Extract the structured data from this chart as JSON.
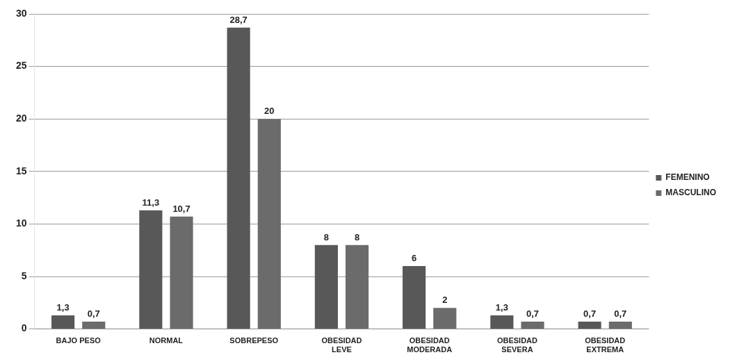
{
  "chart_data": {
    "type": "bar",
    "categories": [
      "BAJO PESO",
      "NORMAL",
      "SOBREPESO",
      "OBESIDAD\nLEVE",
      "OBESIDAD\nMODERADA",
      "OBESIDAD\nSEVERA",
      "OBESIDAD\nEXTREMA"
    ],
    "series": [
      {
        "name": "FEMENINO",
        "color": "#585858",
        "values": [
          1.3,
          11.3,
          28.7,
          8,
          6,
          1.3,
          0.7
        ],
        "value_labels": [
          "1,3",
          "11,3",
          "28,7",
          "8",
          "6",
          "1,3",
          "0,7"
        ]
      },
      {
        "name": "MASCULINO",
        "color": "#6b6b6b",
        "values": [
          0.7,
          10.7,
          20,
          8,
          2,
          0.7,
          0.7
        ],
        "value_labels": [
          "0,7",
          "10,7",
          "20",
          "8",
          "2",
          "0,7",
          "0,7"
        ]
      }
    ],
    "ylim": [
      0,
      30
    ],
    "yticks": [
      0,
      5,
      10,
      15,
      20,
      25,
      30
    ],
    "grid": "y",
    "legend": "right"
  }
}
